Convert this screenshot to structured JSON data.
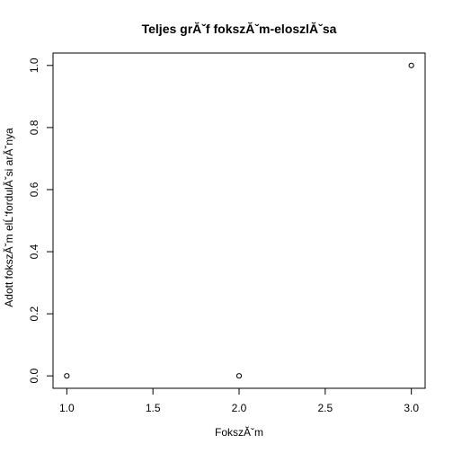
{
  "chart_data": {
    "type": "scatter",
    "title": "Teljes grĂˇf fokszĂˇm-eloszlĂˇsa",
    "xlabel": "FokszĂˇm",
    "ylabel": "Adott fokszĂˇm elĹ‘fordulĂˇsi arĂˇnya",
    "x": [
      1,
      2,
      3
    ],
    "y": [
      0.0,
      0.0,
      1.0
    ],
    "xlim": [
      0.92,
      3.08
    ],
    "ylim": [
      -0.04,
      1.04
    ],
    "xticks": [
      1.0,
      1.5,
      2.0,
      2.5,
      3.0
    ],
    "xtick_labels": [
      "1.0",
      "1.5",
      "2.0",
      "2.5",
      "3.0"
    ],
    "yticks": [
      0.0,
      0.2,
      0.4,
      0.6,
      0.8,
      1.0
    ],
    "ytick_labels": [
      "0.0",
      "0.2",
      "0.4",
      "0.6",
      "0.8",
      "1.0"
    ],
    "grid": false,
    "legend": "none",
    "marker": "open-circle",
    "colors": {
      "points": "#000000",
      "axes": "#000000"
    }
  }
}
